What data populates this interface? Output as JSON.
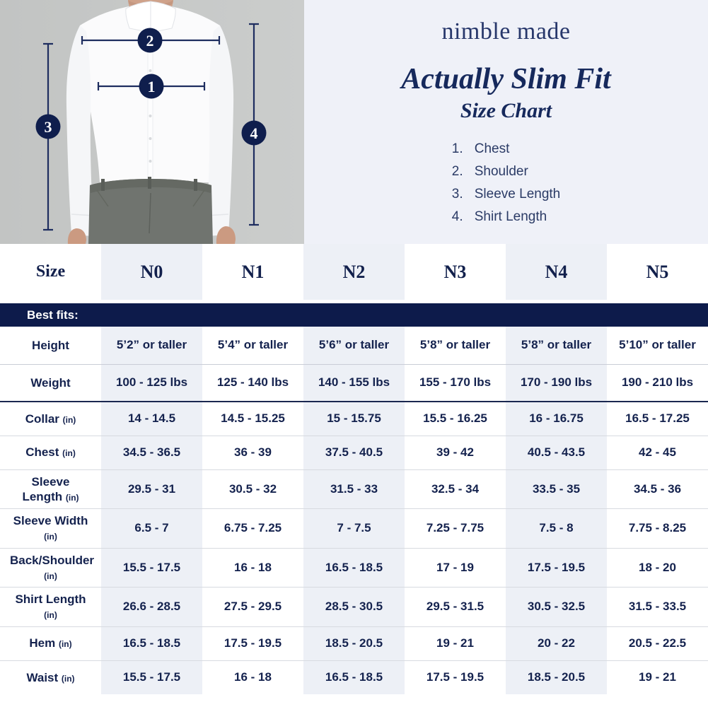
{
  "header": {
    "brand": "nimble made",
    "title": "Actually Slim Fit",
    "subtitle": "Size Chart"
  },
  "legend": [
    {
      "num": "1.",
      "label": "Chest"
    },
    {
      "num": "2.",
      "label": "Shoulder"
    },
    {
      "num": "3.",
      "label": "Sleeve Length"
    },
    {
      "num": "4.",
      "label": "Shirt Length"
    }
  ],
  "figure": {
    "markers": [
      "1",
      "2",
      "3",
      "4"
    ]
  },
  "colors": {
    "navy_text": "#14224e",
    "banner_navy": "#0d1b4b",
    "shaded_column": "#edf0f6",
    "hero_background": "#eff1f8",
    "photo_background": "#c6c8c7",
    "annotation_line": "#1e2d5f"
  },
  "chart_data": {
    "type": "table",
    "columns": [
      "Size",
      "N0",
      "N1",
      "N2",
      "N3",
      "N4",
      "N5"
    ],
    "best_fits_label": "Best fits:",
    "best_fits_rows": [
      {
        "label": "Height",
        "unit": "",
        "values": [
          "5’2” or taller",
          "5’4” or taller",
          "5’6” or taller",
          "5’8” or taller",
          "5’8” or taller",
          "5’10” or taller"
        ]
      },
      {
        "label": "Weight",
        "unit": "",
        "values": [
          "100 - 125 lbs",
          "125 - 140 lbs",
          "140 - 155 lbs",
          "155 - 170 lbs",
          "170 - 190 lbs",
          "190 - 210 lbs"
        ]
      }
    ],
    "measurement_rows": [
      {
        "label": "Collar",
        "unit": "(in)",
        "values": [
          "14 - 14.5",
          "14.5 - 15.25",
          "15 - 15.75",
          "15.5 - 16.25",
          "16 - 16.75",
          "16.5 - 17.25"
        ]
      },
      {
        "label": "Chest",
        "unit": "(in)",
        "values": [
          "34.5 - 36.5",
          "36 - 39",
          "37.5 - 40.5",
          "39 - 42",
          "40.5 - 43.5",
          "42 - 45"
        ]
      },
      {
        "label": "Sleeve Length",
        "unit": "(in)",
        "values": [
          "29.5 - 31",
          "30.5 - 32",
          "31.5 - 33",
          "32.5 - 34",
          "33.5 - 35",
          "34.5 - 36"
        ]
      },
      {
        "label": "Sleeve Width",
        "unit": "(in)",
        "values": [
          "6.5 - 7",
          "6.75 - 7.25",
          "7 - 7.5",
          "7.25 - 7.75",
          "7.5 - 8",
          "7.75 - 8.25"
        ]
      },
      {
        "label": "Back/Shoulder",
        "unit": "(in)",
        "values": [
          "15.5 - 17.5",
          "16 - 18",
          "16.5 - 18.5",
          "17 - 19",
          "17.5 - 19.5",
          "18 - 20"
        ]
      },
      {
        "label": "Shirt Length",
        "unit": "(in)",
        "values": [
          "26.6 - 28.5",
          "27.5 - 29.5",
          "28.5 - 30.5",
          "29.5 - 31.5",
          "30.5 - 32.5",
          "31.5 - 33.5"
        ]
      },
      {
        "label": "Hem",
        "unit": "(in)",
        "values": [
          "16.5 - 18.5",
          "17.5 - 19.5",
          "18.5 - 20.5",
          "19 - 21",
          "20 - 22",
          "20.5 - 22.5"
        ]
      },
      {
        "label": "Waist",
        "unit": "(in)",
        "values": [
          "15.5 - 17.5",
          "16 - 18",
          "16.5 - 18.5",
          "17.5 - 19.5",
          "18.5 - 20.5",
          "19 - 21"
        ]
      }
    ]
  }
}
